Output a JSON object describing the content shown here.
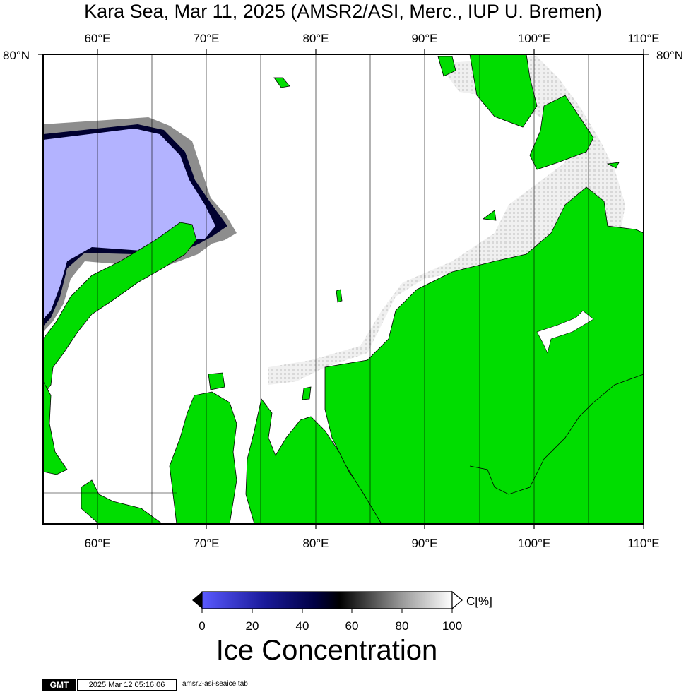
{
  "title": "Kara Sea, Mar 11, 2025 (AMSR2/ASI, Merc., IUP U. Bremen)",
  "map": {
    "lon_ticks": [
      "60°E",
      "70°E",
      "80°E",
      "90°E",
      "100°E",
      "110°E"
    ],
    "lat_ticks": [
      "80°N"
    ],
    "lon_range": [
      55,
      110
    ],
    "colors": {
      "land": "#00dd00",
      "open_water": "#ffffff",
      "ice_low": "#b3b3ff",
      "ice_medium": "#00007a",
      "grid": "#000000"
    }
  },
  "colorbar": {
    "ticks": [
      "0",
      "20",
      "40",
      "60",
      "80",
      "100"
    ],
    "unit": "C[%]",
    "title": "Ice Concentration",
    "stops": [
      "#5a5aff",
      "#000066",
      "#000000",
      "#808080",
      "#ffffff"
    ]
  },
  "footer": {
    "logo": "GMT",
    "timestamp": "2025 Mar 12 05:16:06",
    "filename": "amsr2-asi-seaice.tab"
  }
}
